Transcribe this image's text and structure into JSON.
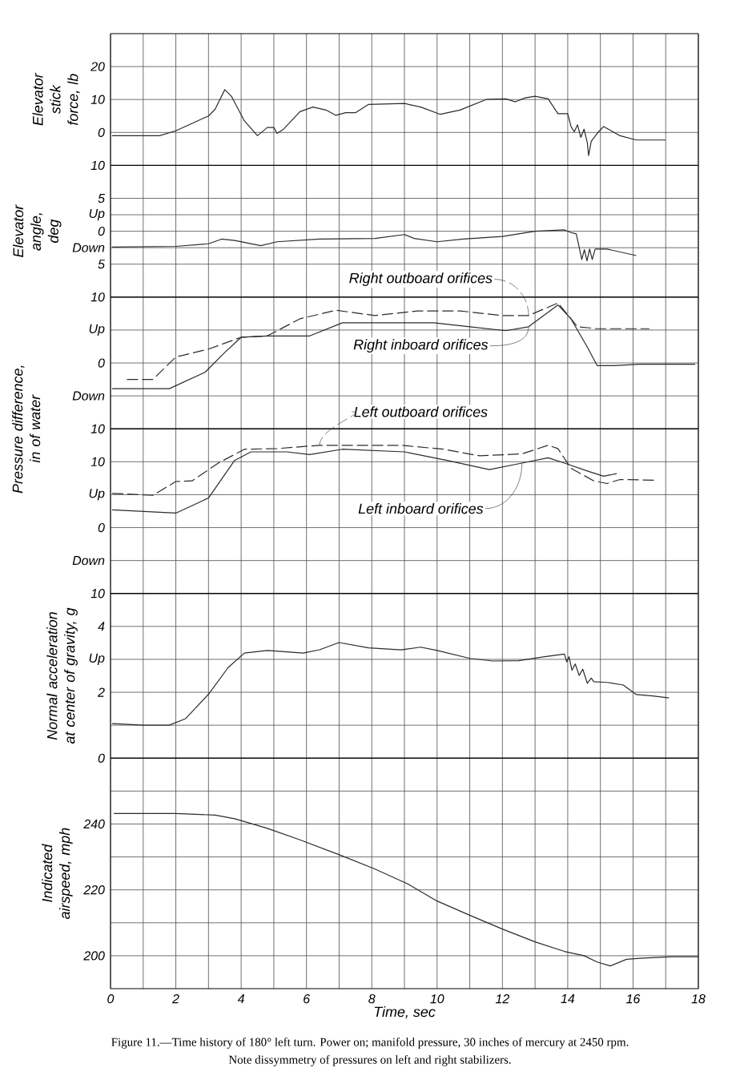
{
  "chart_data": [
    {
      "type": "line",
      "ylabel": "Elevator stick force, lb",
      "xlim": [
        0,
        18
      ],
      "xticks": [
        0,
        {
          "value": 1,
          "label": null
        },
        2,
        {
          "value": 3,
          "label": null
        },
        4,
        {
          "value": 5,
          "label": null
        },
        6,
        {
          "value": 7,
          "label": null
        },
        8,
        {
          "value": 9,
          "label": null
        },
        10,
        {
          "value": 11,
          "label": null
        },
        12,
        {
          "value": 13,
          "label": null
        },
        14,
        {
          "value": 15,
          "label": null
        },
        16,
        {
          "value": 17,
          "label": null
        },
        18
      ],
      "ylim": [
        -10,
        30
      ],
      "yticks": [
        20,
        10,
        0,
        {
          "value": -10,
          "label": "10"
        }
      ],
      "grid": true,
      "tick_labels": "y",
      "series": [
        {
          "color": "#2b2b2b",
          "x": [
            0.05,
            1.5,
            2.0,
            3.0,
            3.2,
            3.5,
            3.7,
            4.1,
            4.5,
            4.8,
            5.0,
            5.1,
            5.3,
            5.8,
            6.2,
            6.6,
            6.9,
            7.2,
            7.5,
            7.9,
            9.0,
            9.5,
            10.1,
            10.7,
            11.5,
            12.1,
            12.4,
            12.7,
            13.0,
            13.4,
            13.7,
            14.0,
            14.1,
            14.2,
            14.3,
            14.4,
            14.5,
            14.6,
            14.64,
            14.72,
            14.9,
            15.1,
            15.3,
            15.6,
            16.1,
            17.0
          ],
          "values": [
            -1,
            -1,
            0.5,
            5,
            7,
            13,
            11,
            3.5,
            -1,
            1.5,
            1.5,
            -0.3,
            1,
            6.3,
            7.7,
            6.8,
            5.2,
            6,
            6,
            8.5,
            8.8,
            7.7,
            5.5,
            6.8,
            10,
            10.2,
            9.3,
            10.5,
            11,
            10.2,
            5.7,
            5.7,
            1.8,
            0.2,
            2.3,
            -1.5,
            1,
            -3.2,
            -7,
            -2.7,
            -0.3,
            1.8,
            0.7,
            -1,
            -2.3,
            -2.3
          ]
        }
      ]
    },
    {
      "type": "line",
      "ylabel": "Elevator angle, deg",
      "xlim": [
        0,
        18
      ],
      "xticks": [
        0,
        {
          "value": 1,
          "label": null
        },
        2,
        {
          "value": 3,
          "label": null
        },
        4,
        {
          "value": 5,
          "label": null
        },
        6,
        {
          "value": 7,
          "label": null
        },
        8,
        {
          "value": 9,
          "label": null
        },
        10,
        {
          "value": 11,
          "label": null
        },
        12,
        {
          "value": 13,
          "label": null
        },
        14,
        {
          "value": 15,
          "label": null
        },
        16,
        {
          "value": 17,
          "label": null
        },
        18
      ],
      "ylim": [
        -10,
        10
      ],
      "yticks": [
        5,
        {
          "value": 2.5,
          "label": "Up"
        },
        0,
        {
          "value": -2.5,
          "label": "Down"
        },
        {
          "value": -5,
          "label": "5"
        }
      ],
      "grid": true,
      "tick_labels": "y",
      "series": [
        {
          "color": "#2b2b2b",
          "x": [
            0.05,
            2.0,
            3.0,
            3.4,
            3.8,
            4.6,
            5.1,
            6.4,
            8.1,
            9.0,
            9.3,
            10.0,
            10.8,
            12.0,
            13.0,
            13.9,
            14.1,
            14.26,
            14.35,
            14.43,
            14.51,
            14.59,
            14.67,
            14.75,
            14.84,
            15.2,
            16.1
          ],
          "values": [
            -2.4,
            -2.3,
            -1.9,
            -1.2,
            -1.4,
            -2.2,
            -1.6,
            -1.2,
            -1.1,
            -0.5,
            -1.1,
            -1.6,
            -1.2,
            -0.8,
            0,
            0.2,
            -0.2,
            -0.4,
            -2.4,
            -4.3,
            -2.8,
            -4.5,
            -2.7,
            -4.3,
            -2.7,
            -2.7,
            -3.7
          ]
        }
      ]
    },
    {
      "type": "line",
      "ylabel": "Pressure difference, in of water",
      "xlim": [
        0,
        18
      ],
      "xticks": [
        0,
        {
          "value": 1,
          "label": null
        },
        2,
        {
          "value": 3,
          "label": null
        },
        4,
        {
          "value": 5,
          "label": null
        },
        6,
        {
          "value": 7,
          "label": null
        },
        8,
        {
          "value": 9,
          "label": null
        },
        10,
        {
          "value": 11,
          "label": null
        },
        12,
        {
          "value": 13,
          "label": null
        },
        14,
        {
          "value": 15,
          "label": null
        },
        16,
        {
          "value": 17,
          "label": null
        },
        18
      ],
      "ylim": [
        -10,
        10
      ],
      "yticks": [
        10,
        {
          "value": 5,
          "label": "Up"
        },
        0,
        {
          "value": -5,
          "label": "Down"
        },
        {
          "value": -10,
          "label": "10"
        }
      ],
      "grid": true,
      "tick_labels": "y",
      "series": [
        {
          "name": "Right outboard orifices",
          "color": "#2b2b2b",
          "line_style": "dashed",
          "x": [
            0.5,
            1.3,
            2.0,
            3.0,
            4.0,
            4.8,
            5.8,
            6.9,
            8.1,
            9.4,
            10.7,
            12.0,
            12.8,
            13.7,
            13.9,
            14.3,
            14.9,
            16.5
          ],
          "values": [
            -2.5,
            -2.5,
            0.9,
            2.1,
            3.9,
            4.1,
            6.7,
            8.0,
            7.2,
            7.9,
            7.9,
            7.2,
            7.2,
            9.1,
            7.9,
            5.5,
            5.2,
            5.2
          ]
        },
        {
          "name": "Right inboard orifices",
          "color": "#2b2b2b",
          "line_style": "solid",
          "x": [
            0.05,
            1.8,
            2.9,
            3.5,
            4.0,
            4.8,
            6.1,
            7.1,
            8.4,
            9.9,
            11.0,
            12.1,
            12.8,
            13.7,
            14.1,
            14.6,
            14.9,
            15.4,
            16.2,
            17.9
          ],
          "values": [
            -3.9,
            -3.9,
            -1.4,
            1.6,
            3.9,
            4.1,
            4.1,
            6.1,
            6.1,
            6.1,
            5.5,
            4.9,
            5.5,
            8.8,
            6.7,
            2.4,
            -0.4,
            -0.4,
            -0.2,
            -0.2
          ]
        }
      ]
    },
    {
      "type": "line",
      "xlim": [
        0,
        18
      ],
      "xticks": [
        0,
        {
          "value": 1,
          "label": null
        },
        2,
        {
          "value": 3,
          "label": null
        },
        4,
        {
          "value": 5,
          "label": null
        },
        6,
        {
          "value": 7,
          "label": null
        },
        8,
        {
          "value": 9,
          "label": null
        },
        10,
        {
          "value": 11,
          "label": null
        },
        12,
        {
          "value": 13,
          "label": null
        },
        14,
        {
          "value": 15,
          "label": null
        },
        16,
        {
          "value": 17,
          "label": null
        },
        18
      ],
      "ylim": [
        -10,
        15
      ],
      "yticks": [
        10,
        {
          "value": 5,
          "label": "Up"
        },
        0,
        {
          "value": -5,
          "label": "Down"
        },
        {
          "value": -10,
          "label": "10"
        }
      ],
      "grid": true,
      "tick_labels": "y",
      "series": [
        {
          "name": "Left outboard orifices",
          "color": "#2b2b2b",
          "line_style": "dashed",
          "x": [
            0.05,
            1.3,
            2.0,
            2.5,
            3.3,
            4.1,
            5.1,
            6.4,
            8.9,
            10.2,
            11.3,
            12.6,
            13.4,
            13.7,
            14.1,
            14.8,
            15.2,
            15.6,
            16.7
          ],
          "values": [
            5.2,
            4.9,
            7.0,
            7.1,
            9.8,
            11.9,
            12.0,
            12.5,
            12.5,
            11.9,
            10.9,
            11.2,
            12.5,
            12.0,
            9.0,
            7.1,
            6.7,
            7.3,
            7.2
          ]
        },
        {
          "name": "Left inboard orifices",
          "color": "#2b2b2b",
          "line_style": "solid",
          "x": [
            0.05,
            2.0,
            3.0,
            3.8,
            4.3,
            5.4,
            6.1,
            7.1,
            9.0,
            10.3,
            11.6,
            12.6,
            13.4,
            13.9,
            14.6,
            15.1,
            15.5
          ],
          "values": [
            2.7,
            2.2,
            4.5,
            10.2,
            11.5,
            11.5,
            11.1,
            11.9,
            11.5,
            10.2,
            8.8,
            9.8,
            10.6,
            9.8,
            8.6,
            7.8,
            8.2
          ]
        }
      ]
    },
    {
      "type": "line",
      "ylabel": "Normal acceleration at center of gravity, g",
      "xlim": [
        0,
        18
      ],
      "xticks": [
        0,
        {
          "value": 1,
          "label": null
        },
        2,
        {
          "value": 3,
          "label": null
        },
        4,
        {
          "value": 5,
          "label": null
        },
        6,
        {
          "value": 7,
          "label": null
        },
        8,
        {
          "value": 9,
          "label": null
        },
        10,
        {
          "value": 11,
          "label": null
        },
        12,
        {
          "value": 13,
          "label": null
        },
        14,
        {
          "value": 15,
          "label": null
        },
        16,
        {
          "value": 17,
          "label": null
        },
        18
      ],
      "ylim": [
        0,
        5
      ],
      "yticks": [
        4,
        {
          "value": 3,
          "label": "Up"
        },
        2,
        {
          "value": 1,
          "label": null
        },
        0
      ],
      "grid": true,
      "tick_labels": "y",
      "series": [
        {
          "color": "#2b2b2b",
          "x": [
            0.05,
            1.0,
            1.8,
            2.3,
            3.0,
            3.6,
            4.1,
            4.8,
            5.9,
            6.4,
            7.0,
            7.9,
            8.9,
            9.5,
            10.0,
            11.0,
            11.7,
            12.5,
            13.3,
            13.9,
            13.97,
            14.04,
            14.13,
            14.23,
            14.35,
            14.46,
            14.6,
            14.72,
            14.8,
            15.2,
            15.7,
            16.1,
            16.6,
            17.1
          ],
          "values": [
            1.05,
            1.0,
            1.0,
            1.2,
            1.94,
            2.75,
            3.19,
            3.27,
            3.19,
            3.29,
            3.51,
            3.35,
            3.29,
            3.37,
            3.27,
            3.03,
            2.95,
            2.96,
            3.08,
            3.16,
            2.92,
            3.08,
            2.67,
            2.86,
            2.51,
            2.7,
            2.27,
            2.43,
            2.32,
            2.3,
            2.22,
            1.93,
            1.89,
            1.83
          ]
        }
      ]
    },
    {
      "type": "line",
      "ylabel": "Indicated airspeed, mph",
      "xlabel": "Time, sec",
      "xlim": [
        0,
        18
      ],
      "xticks": [
        0,
        {
          "value": 1,
          "label": null
        },
        2,
        {
          "value": 3,
          "label": null
        },
        4,
        {
          "value": 5,
          "label": null
        },
        6,
        {
          "value": 7,
          "label": null
        },
        8,
        {
          "value": 9,
          "label": null
        },
        10,
        {
          "value": 11,
          "label": null
        },
        12,
        {
          "value": 13,
          "label": null
        },
        14,
        {
          "value": 15,
          "label": null
        },
        16,
        {
          "value": 17,
          "label": null
        },
        18
      ],
      "ylim": [
        190,
        260
      ],
      "yticks": [
        {
          "value": 250,
          "label": null
        },
        240,
        {
          "value": 230,
          "label": null
        },
        220,
        {
          "value": 210,
          "label": null
        },
        200
      ],
      "grid": true,
      "annotations": [
        "Figure 11.—Time history of 180° left turn.   Power on; manifold pressure, 30 inches of mercury at 2450 rpm.",
        "Note dissymmetry of pressures on left and right stabilizers."
      ],
      "series": [
        {
          "color": "#2b2b2b",
          "x": [
            0.1,
            2.0,
            3.2,
            3.8,
            4.8,
            5.8,
            7.1,
            8.1,
            9.1,
            10.0,
            11.0,
            12.0,
            13.0,
            13.9,
            14.5,
            14.9,
            15.3,
            15.8,
            16.2,
            17.2,
            18.0
          ],
          "values": [
            243.2,
            243.2,
            242.7,
            241.6,
            238.7,
            235.2,
            230.3,
            226.3,
            221.8,
            216.6,
            212.3,
            208.1,
            204.2,
            201.3,
            200,
            198.1,
            196.9,
            198.9,
            199.2,
            199.7,
            199.7
          ]
        }
      ]
    }
  ]
}
